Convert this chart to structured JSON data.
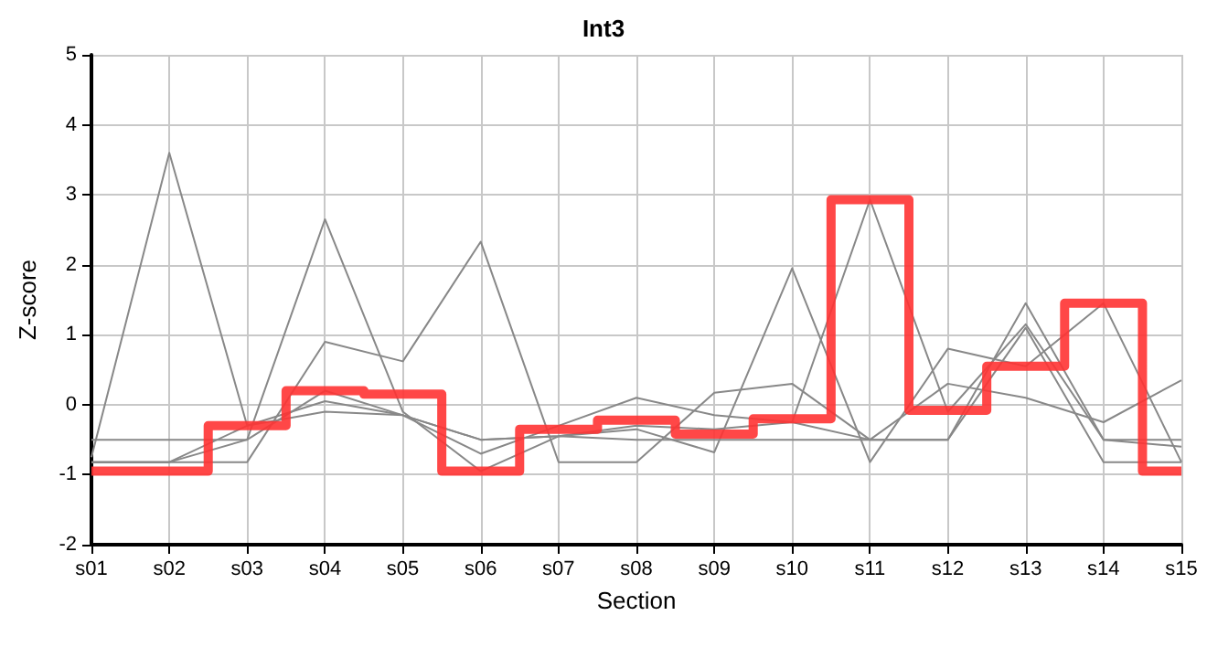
{
  "chart_data": {
    "type": "line",
    "title": "Int3",
    "xlabel": "Section",
    "ylabel": "Z-score",
    "categories": [
      "s01",
      "s02",
      "s03",
      "s04",
      "s05",
      "s06",
      "s07",
      "s08",
      "s09",
      "s10",
      "s11",
      "s12",
      "s13",
      "s14",
      "s15"
    ],
    "ylim": [
      -2,
      5
    ],
    "yticks": [
      -2,
      -1,
      0,
      1,
      2,
      3,
      4,
      5
    ],
    "grid": true,
    "marker": "none",
    "series": [
      {
        "color": "#888888",
        "values": [
          -0.75,
          3.6,
          -0.3,
          0.05,
          -0.15,
          -0.5,
          -0.45,
          -0.3,
          -0.35,
          -0.25,
          -0.5,
          0.3,
          0.1,
          -0.25,
          0.35
        ]
      },
      {
        "color": "#888888",
        "values": [
          -0.82,
          -0.82,
          -0.82,
          0.9,
          0.62,
          2.33,
          -0.82,
          -0.82,
          0.17,
          0.3,
          -0.5,
          -0.5,
          1.1,
          -0.82,
          -0.82
        ]
      },
      {
        "color": "#888888",
        "values": [
          -0.5,
          -0.5,
          -0.5,
          2.65,
          -0.1,
          -0.95,
          -0.45,
          -0.5,
          -0.5,
          -0.5,
          -0.5,
          -0.5,
          1.45,
          -0.5,
          -0.5
        ]
      },
      {
        "color": "#888888",
        "values": [
          -0.82,
          -0.82,
          -0.5,
          0.2,
          -0.15,
          -0.7,
          -0.3,
          0.1,
          -0.15,
          -0.25,
          2.93,
          -0.1,
          1.15,
          -0.5,
          -0.6
        ]
      },
      {
        "color": "#888888",
        "values": [
          -0.82,
          -0.82,
          -0.3,
          -0.1,
          -0.15,
          -0.5,
          -0.45,
          -0.35,
          -0.68,
          1.95,
          -0.82,
          0.8,
          0.55,
          1.45,
          -0.82
        ]
      },
      {
        "type": "step",
        "color": "#ff3333",
        "values": [
          -0.95,
          -0.95,
          -0.3,
          0.2,
          0.15,
          -0.95,
          -0.35,
          -0.22,
          -0.42,
          -0.2,
          2.93,
          -0.08,
          0.55,
          1.45,
          -0.95
        ]
      }
    ]
  }
}
